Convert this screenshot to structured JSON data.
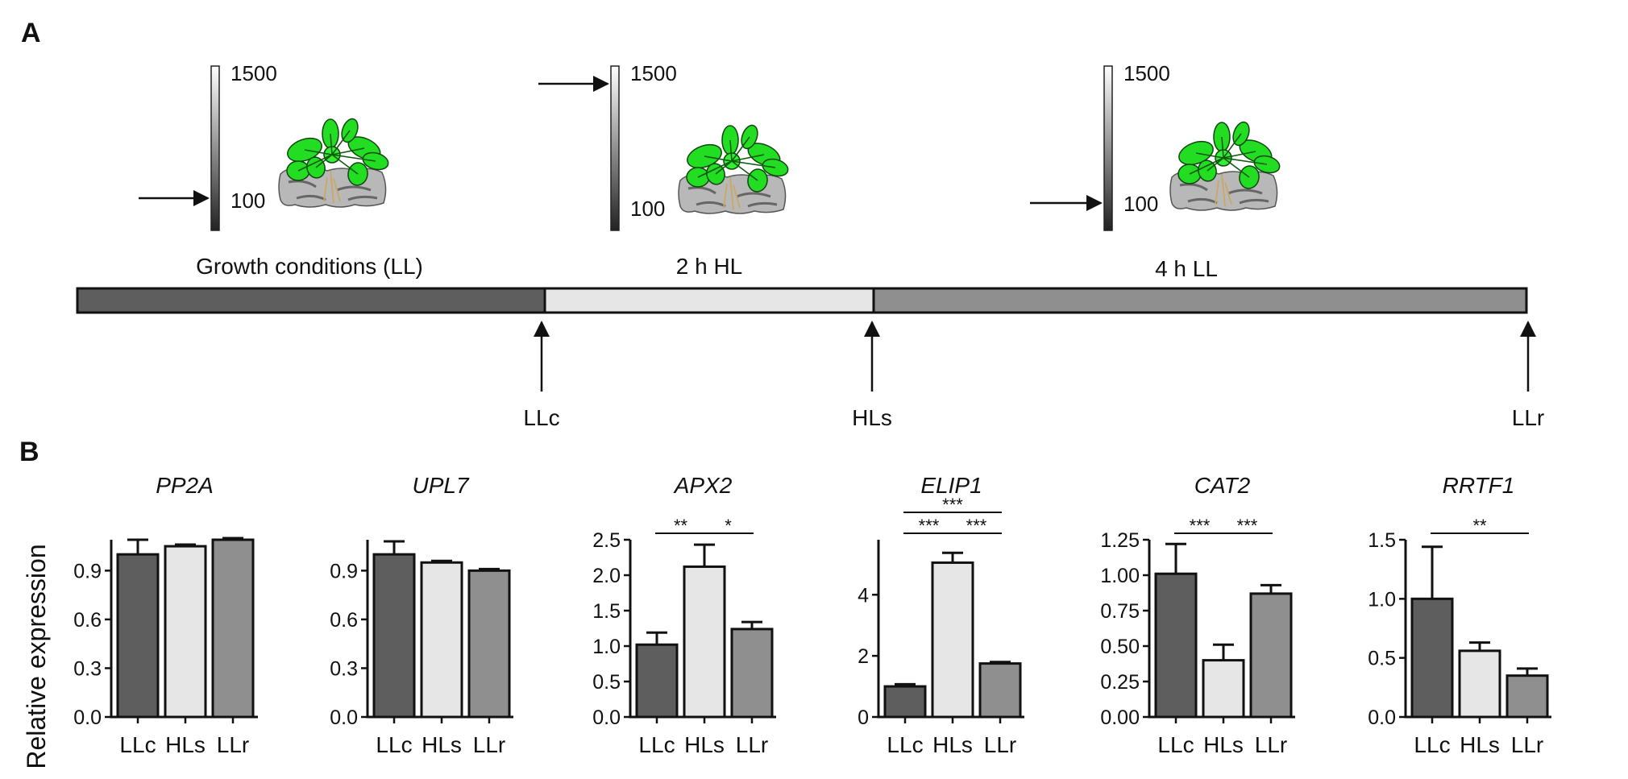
{
  "panels": {
    "a": "A",
    "b": "B"
  },
  "light_scale": {
    "max_label": "1500",
    "min_label": "100"
  },
  "timeline": {
    "phases": [
      {
        "label": "Growth conditions (LL)",
        "color": "#5e5e5e"
      },
      {
        "label": "2 h HL",
        "color": "#e6e6e6"
      },
      {
        "label": "4 h LL",
        "color": "#8f8f8f"
      }
    ],
    "sampling_points": [
      "LLc",
      "HLs",
      "LLr"
    ]
  },
  "ylabel": "Relative expression",
  "bar_colors": {
    "LLc": "#5e5e5e",
    "HLs": "#e6e6e6",
    "LLr": "#8f8f8f"
  },
  "chart_data": [
    {
      "type": "bar",
      "title": "PP2A",
      "categories": [
        "LLc",
        "HLs",
        "LLr"
      ],
      "values": [
        1.0,
        1.05,
        1.09
      ],
      "errors": [
        0.09,
        0.01,
        0.01
      ],
      "ylim": [
        0,
        1.09
      ],
      "yticks": [
        "0.0",
        "0.3",
        "0.6",
        "0.9"
      ],
      "significance": []
    },
    {
      "type": "bar",
      "title": "UPL7",
      "categories": [
        "LLc",
        "HLs",
        "LLr"
      ],
      "values": [
        1.0,
        0.95,
        0.9
      ],
      "errors": [
        0.08,
        0.01,
        0.01
      ],
      "ylim": [
        0,
        1.09
      ],
      "yticks": [
        "0.0",
        "0.3",
        "0.6",
        "0.9"
      ],
      "significance": []
    },
    {
      "type": "bar",
      "title": "APX2",
      "categories": [
        "LLc",
        "HLs",
        "LLr"
      ],
      "values": [
        1.02,
        2.12,
        1.24
      ],
      "errors": [
        0.17,
        0.31,
        0.1
      ],
      "ylim": [
        0,
        2.5
      ],
      "yticks": [
        "0.0",
        "0.5",
        "1.0",
        "1.5",
        "2.0",
        "2.5"
      ],
      "significance": [
        {
          "from": 0,
          "to": 1,
          "label": "**",
          "level": 1
        },
        {
          "from": 1,
          "to": 2,
          "label": "*",
          "level": 1
        }
      ]
    },
    {
      "type": "bar",
      "title": "ELIP1",
      "categories": [
        "LLc",
        "HLs",
        "LLr"
      ],
      "values": [
        1.0,
        5.05,
        1.75
      ],
      "errors": [
        0.07,
        0.32,
        0.05
      ],
      "ylim": [
        0,
        5.8
      ],
      "yticks": [
        "0",
        "2",
        "4"
      ],
      "significance": [
        {
          "from": 0,
          "to": 1,
          "label": "***",
          "level": 1
        },
        {
          "from": 1,
          "to": 2,
          "label": "***",
          "level": 1
        },
        {
          "from": 0,
          "to": 2,
          "label": "***",
          "level": 2
        }
      ]
    },
    {
      "type": "bar",
      "title": "CAT2",
      "categories": [
        "LLc",
        "HLs",
        "LLr"
      ],
      "values": [
        1.01,
        0.4,
        0.87
      ],
      "errors": [
        0.21,
        0.11,
        0.06
      ],
      "ylim": [
        0,
        1.25
      ],
      "yticks": [
        "0.00",
        "0.25",
        "0.50",
        "0.75",
        "1.00",
        "1.25"
      ],
      "significance": [
        {
          "from": 0,
          "to": 1,
          "label": "***",
          "level": 1
        },
        {
          "from": 1,
          "to": 2,
          "label": "***",
          "level": 1
        }
      ]
    },
    {
      "type": "bar",
      "title": "RRTF1",
      "categories": [
        "LLc",
        "HLs",
        "LLr"
      ],
      "values": [
        1.0,
        0.56,
        0.35
      ],
      "errors": [
        0.44,
        0.07,
        0.06
      ],
      "ylim": [
        0,
        1.5
      ],
      "yticks": [
        "0.0",
        "0.5",
        "1.0",
        "1.5"
      ],
      "significance": [
        {
          "from": 0,
          "to": 2,
          "label": "**",
          "level": 1
        }
      ]
    }
  ]
}
